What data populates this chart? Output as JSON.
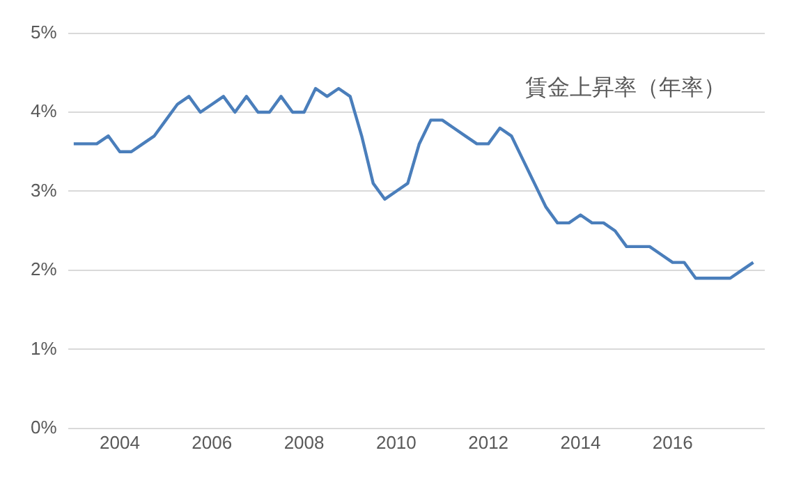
{
  "chart_data": {
    "type": "line",
    "title": "賃金上昇率（年率）",
    "x": [
      2003,
      2003.25,
      2003.5,
      2003.75,
      2004,
      2004.25,
      2004.5,
      2004.75,
      2005,
      2005.25,
      2005.5,
      2005.75,
      2006,
      2006.25,
      2006.5,
      2006.75,
      2007,
      2007.25,
      2007.5,
      2007.75,
      2008,
      2008.25,
      2008.5,
      2008.75,
      2009,
      2009.25,
      2009.5,
      2009.75,
      2010,
      2010.25,
      2010.5,
      2010.75,
      2011,
      2011.25,
      2011.5,
      2011.75,
      2012,
      2012.25,
      2012.5,
      2012.75,
      2013,
      2013.25,
      2013.5,
      2013.75,
      2014,
      2014.25,
      2014.5,
      2014.75,
      2015,
      2015.25,
      2015.5,
      2015.75,
      2016,
      2016.25,
      2016.5,
      2016.75,
      2017,
      2017.25,
      2017.5,
      2017.75
    ],
    "series": [
      {
        "color": "#4a7ebb",
        "values": [
          3.6,
          3.6,
          3.6,
          3.7,
          3.5,
          3.5,
          3.6,
          3.7,
          3.9,
          4.1,
          4.2,
          4.0,
          4.1,
          4.2,
          4.0,
          4.2,
          4.0,
          4.0,
          4.2,
          4.0,
          4.0,
          4.3,
          4.2,
          4.3,
          4.2,
          3.7,
          3.1,
          2.9,
          3.0,
          3.1,
          3.6,
          3.9,
          3.9,
          3.8,
          3.7,
          3.6,
          3.6,
          3.8,
          3.7,
          3.4,
          3.1,
          2.8,
          2.6,
          2.6,
          2.7,
          2.6,
          2.6,
          2.5,
          2.3,
          2.3,
          2.3,
          2.2,
          2.1,
          2.1,
          1.9,
          1.9,
          1.9,
          1.9,
          2.0,
          2.1
        ]
      }
    ],
    "xlim": [
      2002.875,
      2018
    ],
    "xticks": [
      2004,
      2006,
      2008,
      2010,
      2012,
      2014,
      2016
    ],
    "ylim": [
      0,
      5
    ],
    "yticks": [
      {
        "value": 0,
        "label": "0%"
      },
      {
        "value": 1,
        "label": "1%"
      },
      {
        "value": 2,
        "label": "2%"
      },
      {
        "value": 3,
        "label": "3%"
      },
      {
        "value": 4,
        "label": "4%"
      },
      {
        "value": 5,
        "label": "5%"
      }
    ],
    "grid": "y",
    "legend": false,
    "marker": "none",
    "line_style": "solid"
  }
}
